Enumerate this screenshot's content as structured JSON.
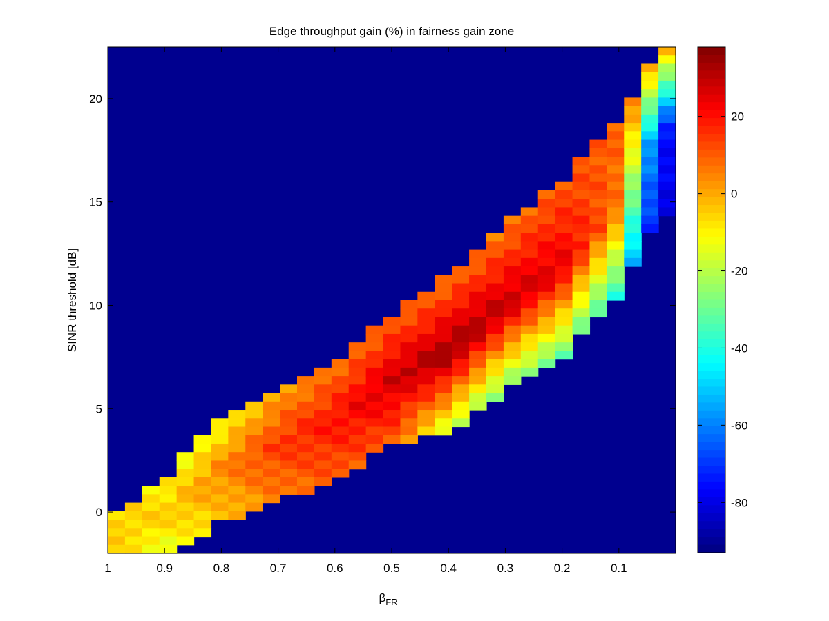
{
  "chart_data": {
    "type": "heatmap",
    "title": "Edge throughput gain (%) in fairness gain zone",
    "xlabel": {
      "base": "β",
      "sub": "FR"
    },
    "ylabel": "SINR threshold [dB]",
    "xlim": [
      1,
      0
    ],
    "x_reversed": true,
    "ylim": [
      -2,
      22.5
    ],
    "x_ticks": [
      1,
      0.9,
      0.8,
      0.7,
      0.6,
      0.5,
      0.4,
      0.3,
      0.2,
      0.1
    ],
    "x_tick_labels": [
      "1",
      "0.9",
      "0.8",
      "0.7",
      "0.6",
      "0.5",
      "0.4",
      "0.3",
      "0.2",
      "0.1"
    ],
    "y_ticks": [
      0,
      5,
      10,
      15,
      20
    ],
    "y_tick_labels": [
      "0",
      "5",
      "10",
      "15",
      "20"
    ],
    "colorbar": {
      "colormap": "jet",
      "range": [
        -93,
        38
      ],
      "ticks": [
        20,
        0,
        -20,
        -40,
        -60,
        -80
      ],
      "tick_labels": [
        "20",
        "0",
        "-20",
        "-40",
        "-60",
        "-80"
      ]
    },
    "background_value": -93,
    "grid": false,
    "legend": "none",
    "band_profile": {
      "beta": [
        1,
        0.9,
        0.8,
        0.7,
        0.6,
        0.5,
        0.4,
        0.3,
        0.2,
        0.1,
        0.03
      ],
      "sinr_lower": [
        -2,
        -2,
        -0.5,
        0.5,
        1.5,
        3.3,
        3.8,
        5.8,
        7.5,
        10.5,
        14.5
      ],
      "sinr_upper": [
        -0.2,
        1.5,
        4.8,
        6.0,
        7.4,
        9.5,
        11.5,
        14.0,
        16.0,
        19.0,
        22.5
      ]
    },
    "gain_along_band": {
      "beta": [
        1,
        0.9,
        0.8,
        0.7,
        0.6,
        0.5,
        0.4,
        0.3,
        0.2,
        0.1,
        0.03
      ],
      "center_gain": [
        -5,
        -5,
        5,
        15,
        20,
        28,
        35,
        30,
        25,
        5,
        -75
      ],
      "upper_edge_gain": [
        -5,
        -10,
        -15,
        0,
        5,
        8,
        5,
        5,
        10,
        10,
        0
      ],
      "lower_edge_gain": [
        -5,
        -15,
        -5,
        5,
        10,
        10,
        -20,
        -30,
        -30,
        -40,
        -80
      ]
    }
  }
}
